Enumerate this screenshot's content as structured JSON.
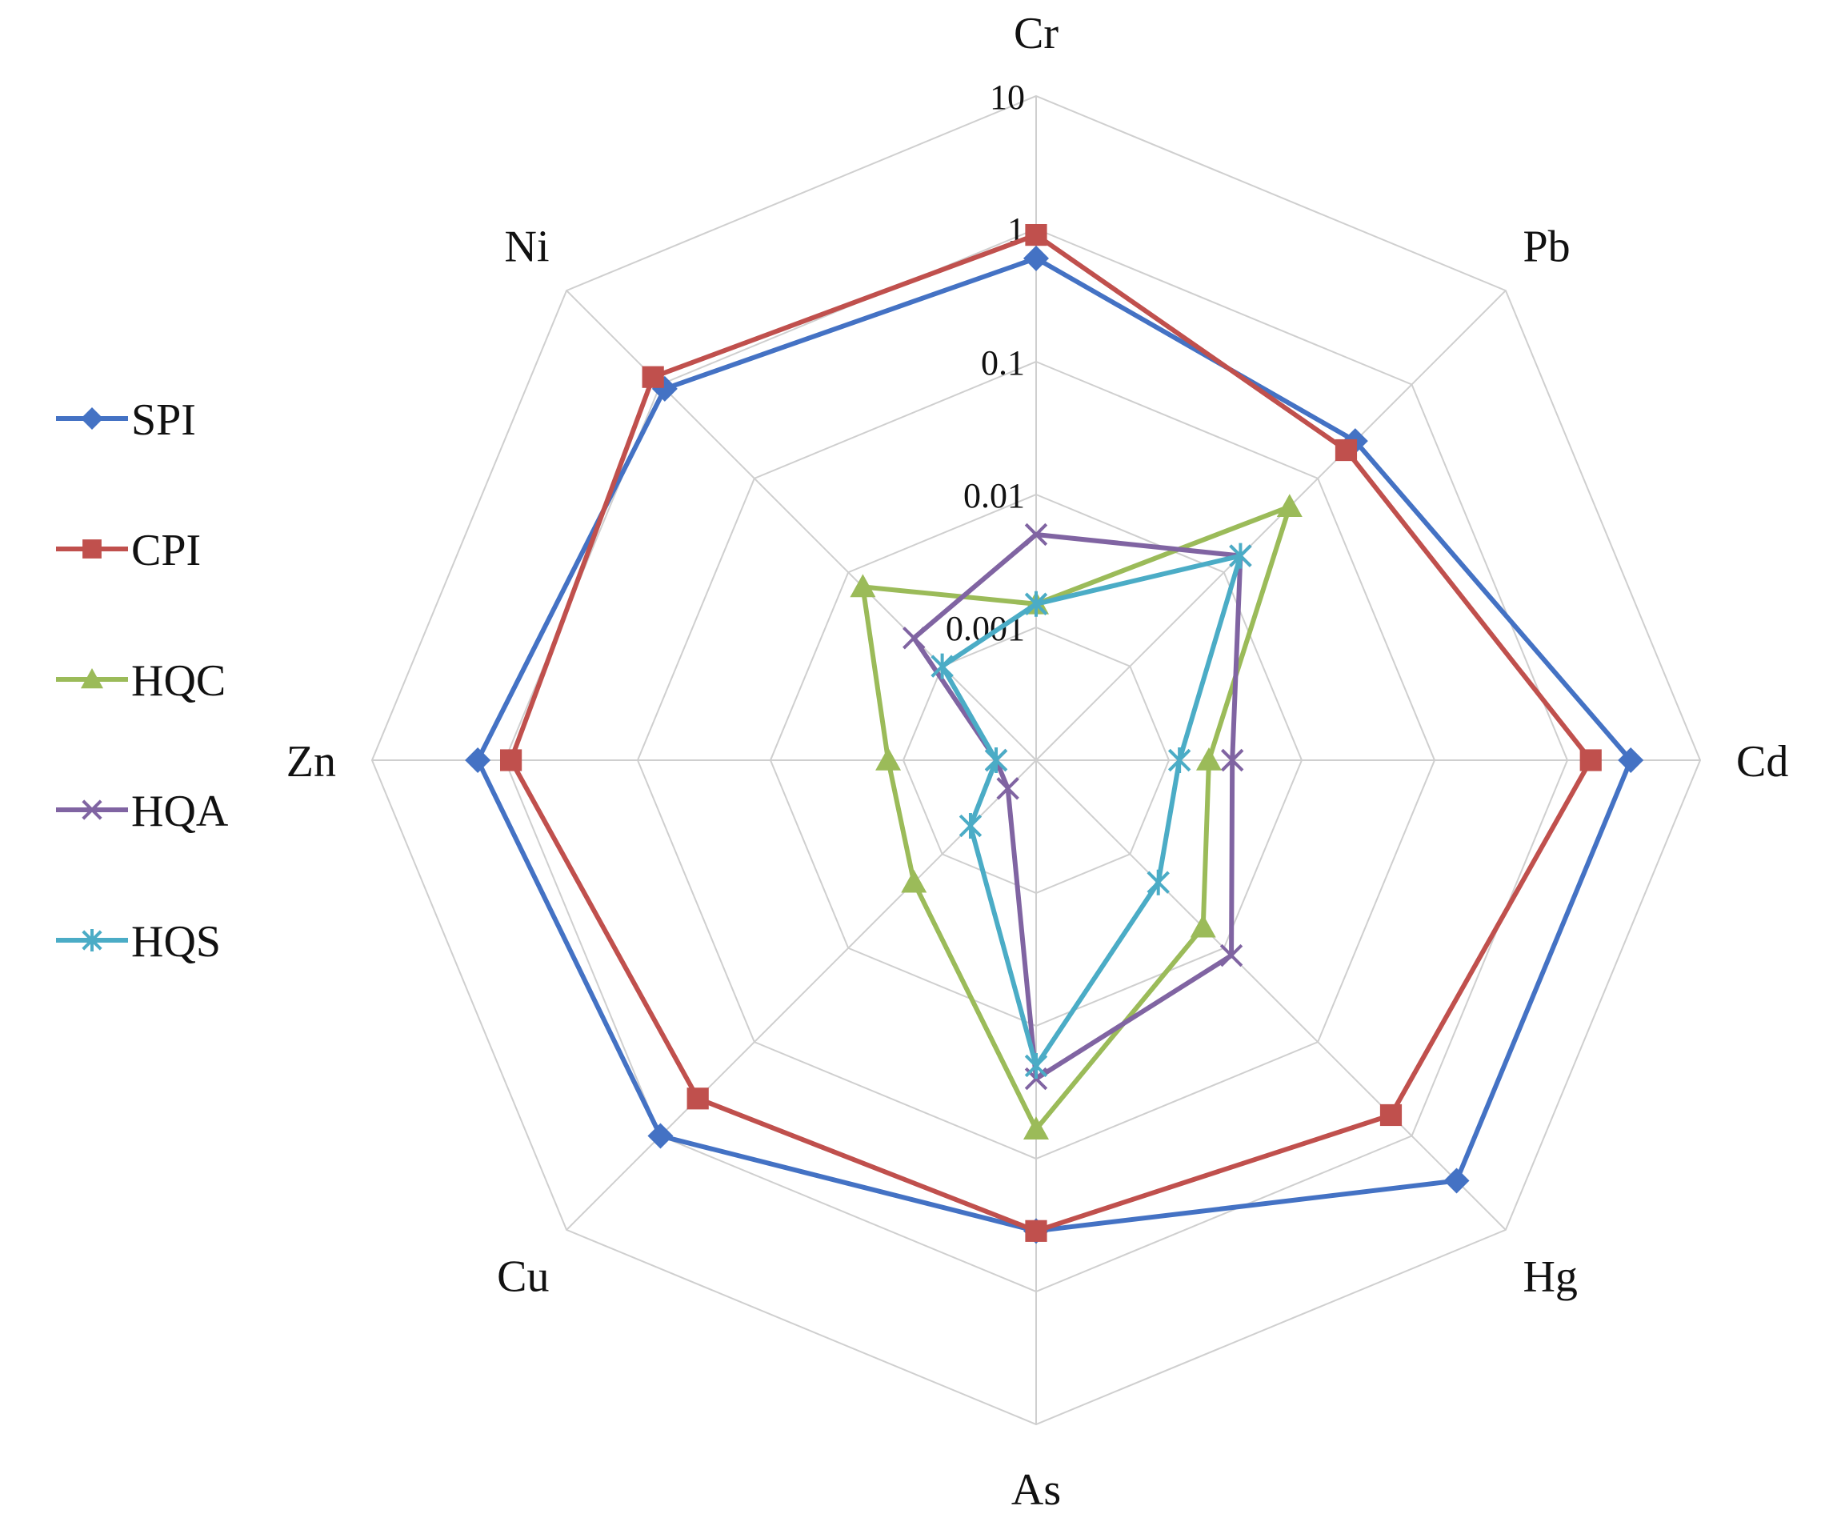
{
  "chart_data": {
    "type": "radar",
    "scale": "log",
    "axes": [
      "Cr",
      "Pb",
      "Cd",
      "Hg",
      "As",
      "Cu",
      "Zn",
      "Ni"
    ],
    "ticks": [
      0.001,
      0.01,
      0.1,
      1,
      10
    ],
    "tick_labels": [
      "0.001",
      "0.01",
      "0.1",
      "1",
      "10"
    ],
    "range": [
      0.0001,
      10
    ],
    "grid": true,
    "legend_position": "left",
    "series": [
      {
        "name": "SPI",
        "color": "#4472C4",
        "marker": "diamond",
        "values": [
          0.6,
          0.25,
          3.0,
          3.0,
          0.35,
          1.0,
          1.6,
          0.9
        ]
      },
      {
        "name": "CPI",
        "color": "#C0504D",
        "marker": "square",
        "values": [
          0.9,
          0.2,
          1.5,
          0.6,
          0.35,
          0.4,
          0.9,
          1.2
        ]
      },
      {
        "name": "HQC",
        "color": "#9BBB59",
        "marker": "triangle",
        "values": [
          0.0015,
          0.05,
          0.002,
          0.006,
          0.06,
          0.002,
          0.0013,
          0.007
        ]
      },
      {
        "name": "HQA",
        "color": "#8064A2",
        "marker": "x",
        "values": [
          0.005,
          0.015,
          0.003,
          0.012,
          0.025,
          0.0002,
          0.0002,
          0.002
        ]
      },
      {
        "name": "HQS",
        "color": "#4BACC6",
        "marker": "star",
        "values": [
          0.0015,
          0.015,
          0.0012,
          0.002,
          0.02,
          0.0005,
          0.0002,
          0.001
        ]
      }
    ]
  }
}
